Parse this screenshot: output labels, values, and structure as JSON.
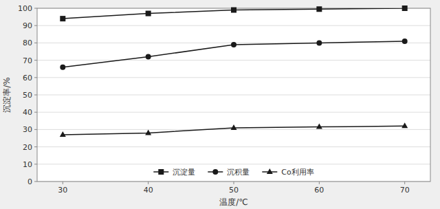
{
  "chart_data": {
    "type": "line",
    "xlabel": "温度/℃",
    "ylabel": "沉淀率/%",
    "x": [
      30,
      40,
      50,
      60,
      70
    ],
    "series": [
      {
        "name": "沉淀量",
        "color": "#1a1a1a",
        "marker": "square",
        "values": [
          94,
          97,
          99,
          99.5,
          100
        ]
      },
      {
        "name": "沉积量",
        "color": "#1a1a1a",
        "marker": "circle",
        "values": [
          66,
          72,
          79,
          80,
          81
        ]
      },
      {
        "name": "Co利用率",
        "color": "#1a1a1a",
        "marker": "triangle",
        "values": [
          27,
          28,
          31,
          31.5,
          32
        ]
      }
    ],
    "xlim": [
      27,
      73
    ],
    "ylim": [
      0,
      100
    ],
    "xticks": [
      30,
      40,
      50,
      60,
      70
    ],
    "yticks": [
      0,
      10,
      20,
      30,
      40,
      50,
      60,
      70,
      80,
      90,
      100
    ],
    "grid": true,
    "legend": "bottom"
  }
}
